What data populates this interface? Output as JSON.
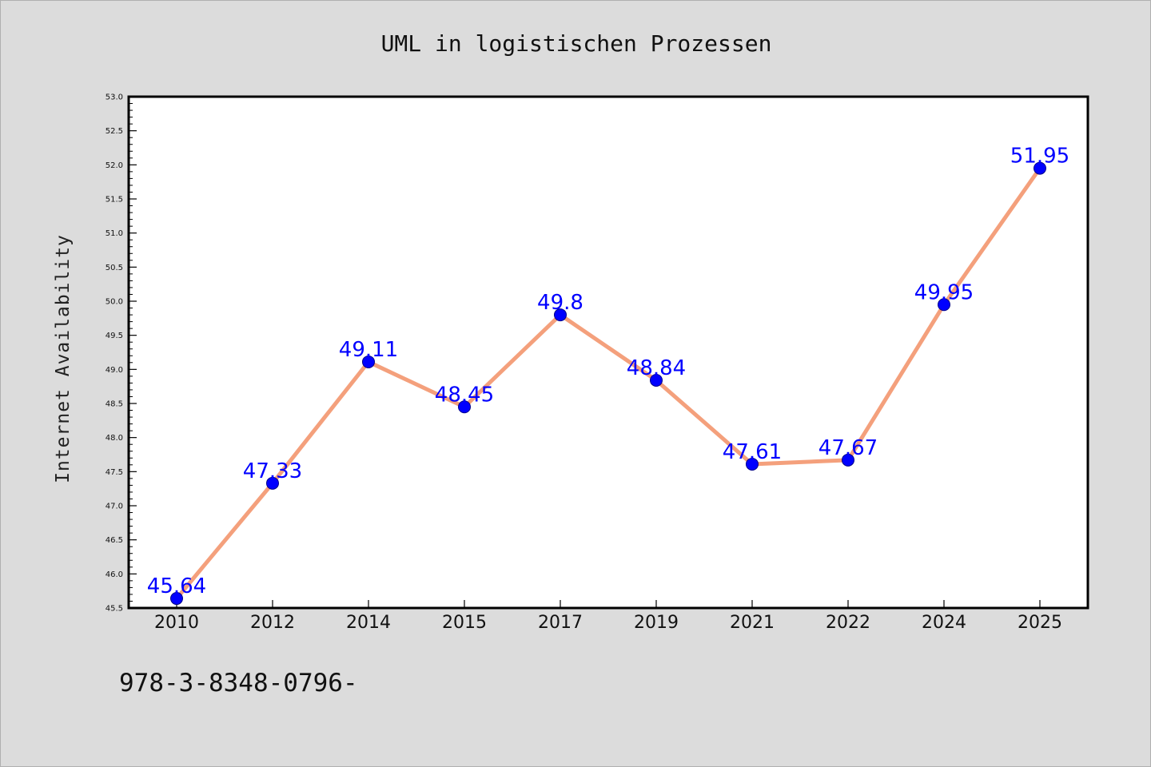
{
  "chart_data": {
    "type": "line",
    "title": "UML in logistischen Prozessen",
    "xlabel": "",
    "ylabel": "Internet Availability",
    "categories": [
      "2010",
      "2012",
      "2014",
      "2015",
      "2017",
      "2019",
      "2021",
      "2022",
      "2024",
      "2025"
    ],
    "series": [
      {
        "values": [
          45.64,
          47.33,
          49.11,
          48.45,
          49.8,
          48.84,
          47.61,
          47.67,
          49.95,
          51.95
        ],
        "labels": [
          "45.64",
          "47.33",
          "49.11",
          "48.45",
          "49.8",
          "48.84",
          "47.61",
          "47.67",
          "49.95",
          "51.95"
        ]
      }
    ],
    "ylim": [
      45.5,
      53.0
    ],
    "yticks": [
      "45.5",
      "46.0",
      "46.5",
      "47.0",
      "47.5",
      "48.0",
      "48.5",
      "49.0",
      "49.5",
      "50.0",
      "50.5",
      "51.0",
      "51.5",
      "52.0",
      "52.5",
      "53.0"
    ],
    "grid": false,
    "legend": "none",
    "colors": {
      "line": "#f4a07c",
      "marker": "#0000ff",
      "marker_edge": "#00008b",
      "label": "#0000ff",
      "plot_background": "#ffffff",
      "figure_background": "#dcdcdc",
      "axes_frame": "#000000"
    }
  },
  "footer": {
    "text": "978-3-8348-0796-"
  }
}
